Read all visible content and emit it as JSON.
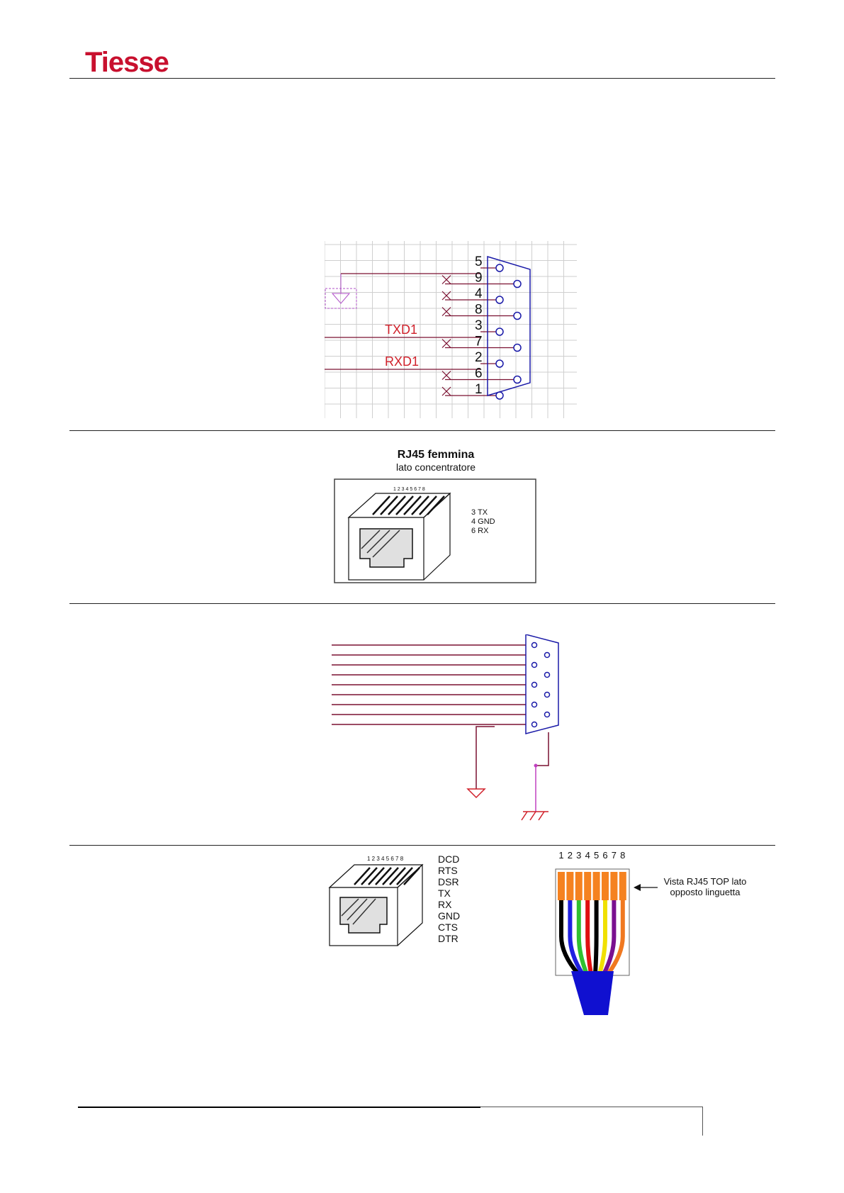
{
  "header": {
    "logo_text": "Tiesse"
  },
  "fig1": {
    "pins": [
      "5",
      "9",
      "4",
      "8",
      "3",
      "7",
      "2",
      "6",
      "1"
    ],
    "txd_label": "TXD1",
    "rxd_label": "RXD1",
    "colors": {
      "label": "#d0202a",
      "connector": "#1a1aa8",
      "wire": "#7a1030",
      "ground": "#b050c8",
      "grid": "#c8c8c8"
    }
  },
  "fig2": {
    "title": "RJ45 femmina",
    "subtitle": "lato concentratore",
    "pin_numbers": "1 2 3 4 5 6 7 8",
    "legend": [
      "3 TX",
      "4 GND",
      "6 RX"
    ]
  },
  "fig3": {
    "colors": {
      "wire": "#7a1030",
      "connector": "#1a1aa8",
      "ground": "#d0202a",
      "junction": "#c040c0"
    }
  },
  "fig4": {
    "pin_numbers_small": "1 2 3 4 5 6 7 8",
    "signals": [
      "DCD",
      "RTS",
      "DSR",
      "TX",
      "RX",
      "GND",
      "CTS",
      "DTR"
    ],
    "pin_numbers_plug": [
      "1",
      "2",
      "3",
      "4",
      "5",
      "6",
      "7",
      "8"
    ],
    "note_line1": "Vista RJ45 TOP lato",
    "note_line2": "opposto linguetta",
    "wire_colors": [
      "#000000",
      "#2020e0",
      "#30c030",
      "#e01010",
      "#000000",
      "#f0e000",
      "#7a1090",
      "#f07820"
    ],
    "cable_color": "#1010d0",
    "pin_color": "#f58220"
  }
}
